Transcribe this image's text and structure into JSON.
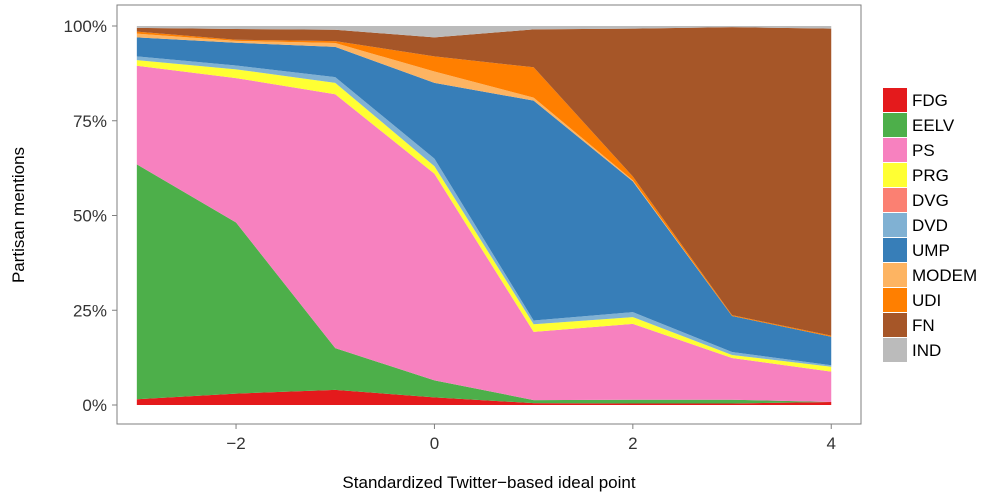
{
  "chart_data": {
    "type": "area",
    "stacked": true,
    "normalized": true,
    "xlabel": "Standardized Twitter−based ideal point",
    "ylabel": "Partisan mentions",
    "xlim": [
      -3.2,
      4.3
    ],
    "ylim": [
      0,
      1
    ],
    "x": [
      -3,
      -2,
      -1,
      0,
      1,
      2,
      3,
      4
    ],
    "x_ticks": [
      -2,
      0,
      2,
      4
    ],
    "x_tick_labels": [
      "−2",
      "0",
      "2",
      "4"
    ],
    "y_ticks": [
      0,
      0.25,
      0.5,
      0.75,
      1
    ],
    "y_tick_labels": [
      "0%",
      "25%",
      "50%",
      "75%",
      "100%"
    ],
    "grid": false,
    "legend_position": "right",
    "series": [
      {
        "name": "FDG",
        "color": "#E41A1C",
        "values": [
          0.015,
          0.03,
          0.04,
          0.02,
          0.005,
          0.004,
          0.004,
          0.008
        ]
      },
      {
        "name": "EELV",
        "color": "#4DAF4A",
        "values": [
          0.62,
          0.45,
          0.11,
          0.045,
          0.008,
          0.01,
          0.01,
          0.0
        ]
      },
      {
        "name": "PS",
        "color": "#F781BF",
        "values": [
          0.26,
          0.38,
          0.67,
          0.545,
          0.18,
          0.2,
          0.11,
          0.08
        ]
      },
      {
        "name": "PRG",
        "color": "#FFFF33",
        "values": [
          0.015,
          0.023,
          0.03,
          0.02,
          0.02,
          0.018,
          0.008,
          0.013
        ]
      },
      {
        "name": "DVG",
        "color": "#FB8072",
        "values": [
          0.0,
          0.0,
          0.0,
          0.0,
          0.0,
          0.0,
          0.0,
          0.0
        ]
      },
      {
        "name": "DVD",
        "color": "#80B1D3",
        "values": [
          0.01,
          0.01,
          0.015,
          0.02,
          0.01,
          0.013,
          0.008,
          0.004
        ]
      },
      {
        "name": "UMP",
        "color": "#377EB8",
        "values": [
          0.05,
          0.06,
          0.08,
          0.2,
          0.58,
          0.345,
          0.095,
          0.075
        ]
      },
      {
        "name": "MODEM",
        "color": "#FDB462",
        "values": [
          0.01,
          0.005,
          0.01,
          0.03,
          0.008,
          0.003,
          0.0,
          0.0
        ]
      },
      {
        "name": "UDI",
        "color": "#FF7F00",
        "values": [
          0.005,
          0.003,
          0.005,
          0.04,
          0.08,
          0.01,
          0.002,
          0.003
        ]
      },
      {
        "name": "FN",
        "color": "#A65628",
        "values": [
          0.01,
          0.028,
          0.03,
          0.05,
          0.1,
          0.39,
          0.76,
          0.81
        ]
      },
      {
        "name": "IND",
        "color": "#BBBBBB",
        "values": [
          0.005,
          0.008,
          0.01,
          0.03,
          0.009,
          0.007,
          0.003,
          0.007
        ]
      }
    ]
  }
}
